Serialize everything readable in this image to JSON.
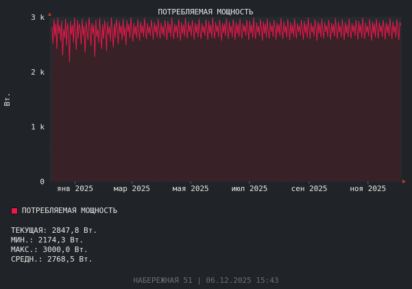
{
  "chart_data": {
    "type": "area",
    "title": "ПОТРЕБЛЯЕМАЯ МОЩНОСТЬ",
    "ylabel": "Вт.",
    "ylim": [
      0,
      3000
    ],
    "y_ticks": [
      {
        "value": 0,
        "label": "0"
      },
      {
        "value": 1000,
        "label": "1 k"
      },
      {
        "value": 2000,
        "label": "2 k"
      },
      {
        "value": 3000,
        "label": "3 k"
      }
    ],
    "xlim": [
      "2024-12-06",
      "2025-12-06"
    ],
    "x_ticks": [
      {
        "date": "2025-01-01",
        "label": "янв 2025"
      },
      {
        "date": "2025-03-01",
        "label": "мар 2025"
      },
      {
        "date": "2025-05-01",
        "label": "мая 2025"
      },
      {
        "date": "2025-07-01",
        "label": "июл 2025"
      },
      {
        "date": "2025-09-01",
        "label": "сен 2025"
      },
      {
        "date": "2025-11-01",
        "label": "ноя 2025"
      }
    ],
    "grid": true,
    "series": [
      {
        "name": "ПОТРЕБЛЯЕМАЯ МОЩНОСТЬ",
        "color": "#e8194a",
        "fill": "#3a2228",
        "x_start": "2024-12-08",
        "x_end": "2025-12-05",
        "values": [
          2820,
          2510,
          2960,
          2650,
          2880,
          2420,
          2990,
          2700,
          2850,
          2560,
          2940,
          2300,
          2780,
          2620,
          2970,
          2480,
          2890,
          2750,
          2180,
          2930,
          2680,
          2860,
          2540,
          2990,
          2720,
          2400,
          2950,
          2610,
          2880,
          2790,
          2500,
          2970,
          2660,
          2840,
          2350,
          2920,
          2730,
          2580,
          2990,
          2810,
          2470,
          2900,
          2690,
          2860,
          2280,
          2950,
          2640,
          2780,
          2530,
          2980,
          2710,
          2420,
          2870,
          2600,
          2940,
          2760,
          2380,
          2910,
          2680,
          2830,
          2560,
          2990,
          2740,
          2450,
          2880,
          2620,
          2960,
          2790,
          2510,
          2930,
          2700,
          2850,
          2580,
          2970,
          2650,
          2820,
          2490,
          2940,
          2730,
          2870,
          2610,
          2990,
          2760,
          2550,
          2900,
          2680,
          2840,
          2620,
          2960,
          2790,
          2570,
          2920,
          2710,
          2850,
          2640,
          2980,
          2750,
          2600,
          2890,
          2700,
          2830,
          2660,
          2950,
          2780,
          2590,
          2910,
          2720,
          2860,
          2630,
          2970,
          2760,
          2610,
          2900,
          2690,
          2840,
          2650,
          2940,
          2790,
          2580,
          2930,
          2710,
          2870,
          2640,
          2990,
          2770,
          2600,
          2880,
          2720,
          2850,
          2620,
          2960,
          2790,
          2570,
          2910,
          2700,
          2860,
          2640,
          2980,
          2760,
          2610,
          2920,
          2730,
          2850,
          2650,
          2950,
          2780,
          2590,
          2900,
          2710,
          2870,
          2630,
          2970,
          2750,
          2600,
          2890,
          2720,
          2840,
          2660,
          2960,
          2800,
          2580,
          2930,
          2700,
          2860,
          2620,
          2990,
          2760,
          2610,
          2910,
          2730,
          2850,
          2640,
          2950,
          2790,
          2570,
          2900,
          2710,
          2880,
          2650,
          2980,
          2770,
          2600,
          2920,
          2720,
          2840,
          2630,
          2960,
          2790,
          2590,
          2910,
          2700,
          2870,
          2640,
          2970,
          2750,
          2610,
          2890,
          2730,
          2850,
          2660,
          2950,
          2780,
          2580,
          2930,
          2710,
          2860,
          2620,
          2990,
          2760,
          2600,
          2900,
          2720,
          2840,
          2650,
          2960,
          2800,
          2570,
          2920,
          2700,
          2880,
          2630,
          2970,
          2750,
          2610,
          2910,
          2730,
          2850,
          2640,
          2950,
          2790,
          2590,
          2900,
          2710,
          2870,
          2650,
          2980,
          2770,
          2600,
          2920,
          2720,
          2840,
          2630,
          2960,
          2790,
          2580,
          2910,
          2700,
          2860,
          2640,
          2970,
          2760,
          2610,
          2890,
          2730,
          2850,
          2660,
          2950,
          2780,
          2590,
          2930,
          2710,
          2870,
          2620,
          2990,
          2760,
          2600,
          2900,
          2720,
          2840,
          2650,
          2960,
          2800,
          2570,
          2920,
          2700,
          2880,
          2630,
          2970,
          2750,
          2610,
          2910,
          2730,
          2850,
          2640,
          2950,
          2790,
          2590,
          2900,
          2710,
          2870,
          2650,
          2980,
          2770,
          2600,
          2920,
          2720,
          2840,
          2630,
          2960,
          2790,
          2580,
          2910,
          2700,
          2860,
          2640,
          2970,
          2760,
          2610,
          2890,
          2730,
          2850,
          2660,
          2950,
          2780,
          2590,
          2930,
          2710,
          2870,
          2620,
          2990,
          2760,
          2600,
          2900,
          2720,
          2840,
          2650,
          2960,
          2800,
          2570,
          2920,
          2700,
          2880,
          2630,
          2970,
          2750,
          2610,
          2910,
          2730,
          2850,
          2640,
          2950,
          2790,
          2590,
          2900,
          2710,
          2870,
          2650,
          2980,
          2770,
          2600,
          2920,
          2720,
          2840,
          2630,
          2960,
          2790,
          2580,
          2910,
          2848
        ]
      }
    ]
  },
  "legend": {
    "label": "ПОТРЕБЛЯЕМАЯ МОЩНОСТЬ",
    "color": "#e8194a"
  },
  "stats": {
    "current": "ТЕКУЩАЯ: 2847,8 Вт.",
    "min": "МИН.: 2174,3 Вт.",
    "max": "МАКС.: 3000,0 Вт.",
    "avg": "СРЕДН.: 2768,5 Вт."
  },
  "footer": "НАБЕРЕЖНАЯ 51 | 06.12.2025 15:43"
}
